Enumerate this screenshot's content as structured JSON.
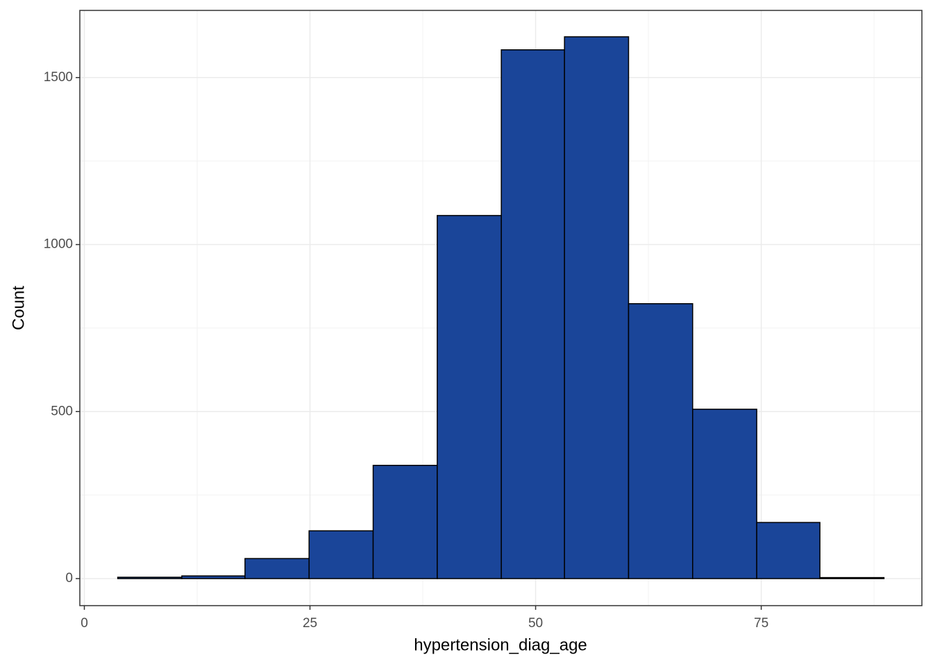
{
  "chart_data": {
    "type": "histogram",
    "x_label": "hypertension_diag_age",
    "y_label": "Count",
    "bins": [
      3.7,
      10.8,
      17.8,
      24.9,
      32.0,
      39.1,
      46.2,
      53.2,
      60.3,
      67.4,
      74.5,
      81.5,
      88.6
    ],
    "values": [
      4,
      8,
      60,
      143,
      339,
      1087,
      1583,
      1622,
      823,
      507,
      168,
      3
    ],
    "color": "#1a4599",
    "edge_color": "#000000",
    "xlim": [
      -0.5,
      92.8
    ],
    "ylim": [
      -81,
      1701
    ],
    "xticks": [
      0,
      25,
      50,
      75
    ],
    "yticks": [
      0,
      500,
      1000,
      1500
    ],
    "x_minor_grid": [
      12.5,
      37.5,
      62.5,
      87.5
    ],
    "y_minor_grid": [
      250,
      750,
      1250
    ],
    "grid": true
  }
}
